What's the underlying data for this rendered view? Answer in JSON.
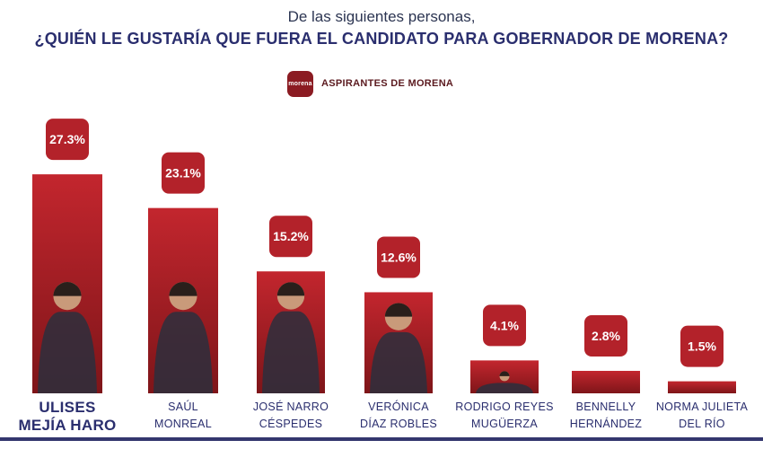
{
  "header": {
    "subtitle": "De las siguientes personas,",
    "title": "¿QUIÉN LE GUSTARÍA QUE FUERA EL CANDIDATO PARA GOBERNADOR DE MORENA?"
  },
  "legend": {
    "logo_text": "morena",
    "label": "ASPIRANTES DE MORENA"
  },
  "colors": {
    "bar_top": "#c3262e",
    "bar_bottom": "#7e1519",
    "badge": "#b3222a",
    "badge_text": "#ffffff",
    "name_text": "#2a2e6e",
    "baseline": "#33366e"
  },
  "chart_data": {
    "type": "bar",
    "title": "¿QUIÉN LE GUSTARÍA QUE FUERA EL CANDIDATO PARA GOBERNADOR DE MORENA?",
    "xlabel": "",
    "ylabel": "",
    "ylim": [
      0,
      30
    ],
    "grid": false,
    "legend": "top-center",
    "categories": [
      [
        "ULISES",
        "MEJÍA HARO"
      ],
      [
        "SAÚL",
        "MONREAL"
      ],
      [
        "JOSÉ NARRO",
        "CÉSPEDES"
      ],
      [
        "VERÓNICA",
        "DÍAZ ROBLES"
      ],
      [
        "RODRIGO REYES",
        "MUGÜERZA"
      ],
      [
        "BENNELLY",
        "HERNÁNDEZ"
      ],
      [
        "NORMA JULIETA",
        "DEL RÍO"
      ]
    ],
    "series": [
      {
        "name": "ASPIRANTES DE MORENA",
        "values": [
          27.3,
          23.1,
          15.2,
          12.6,
          4.1,
          2.8,
          1.5
        ],
        "labels": [
          "27.3%",
          "23.1%",
          "15.2%",
          "12.6%",
          "4.1%",
          "2.8%",
          "1.5%"
        ]
      }
    ]
  }
}
